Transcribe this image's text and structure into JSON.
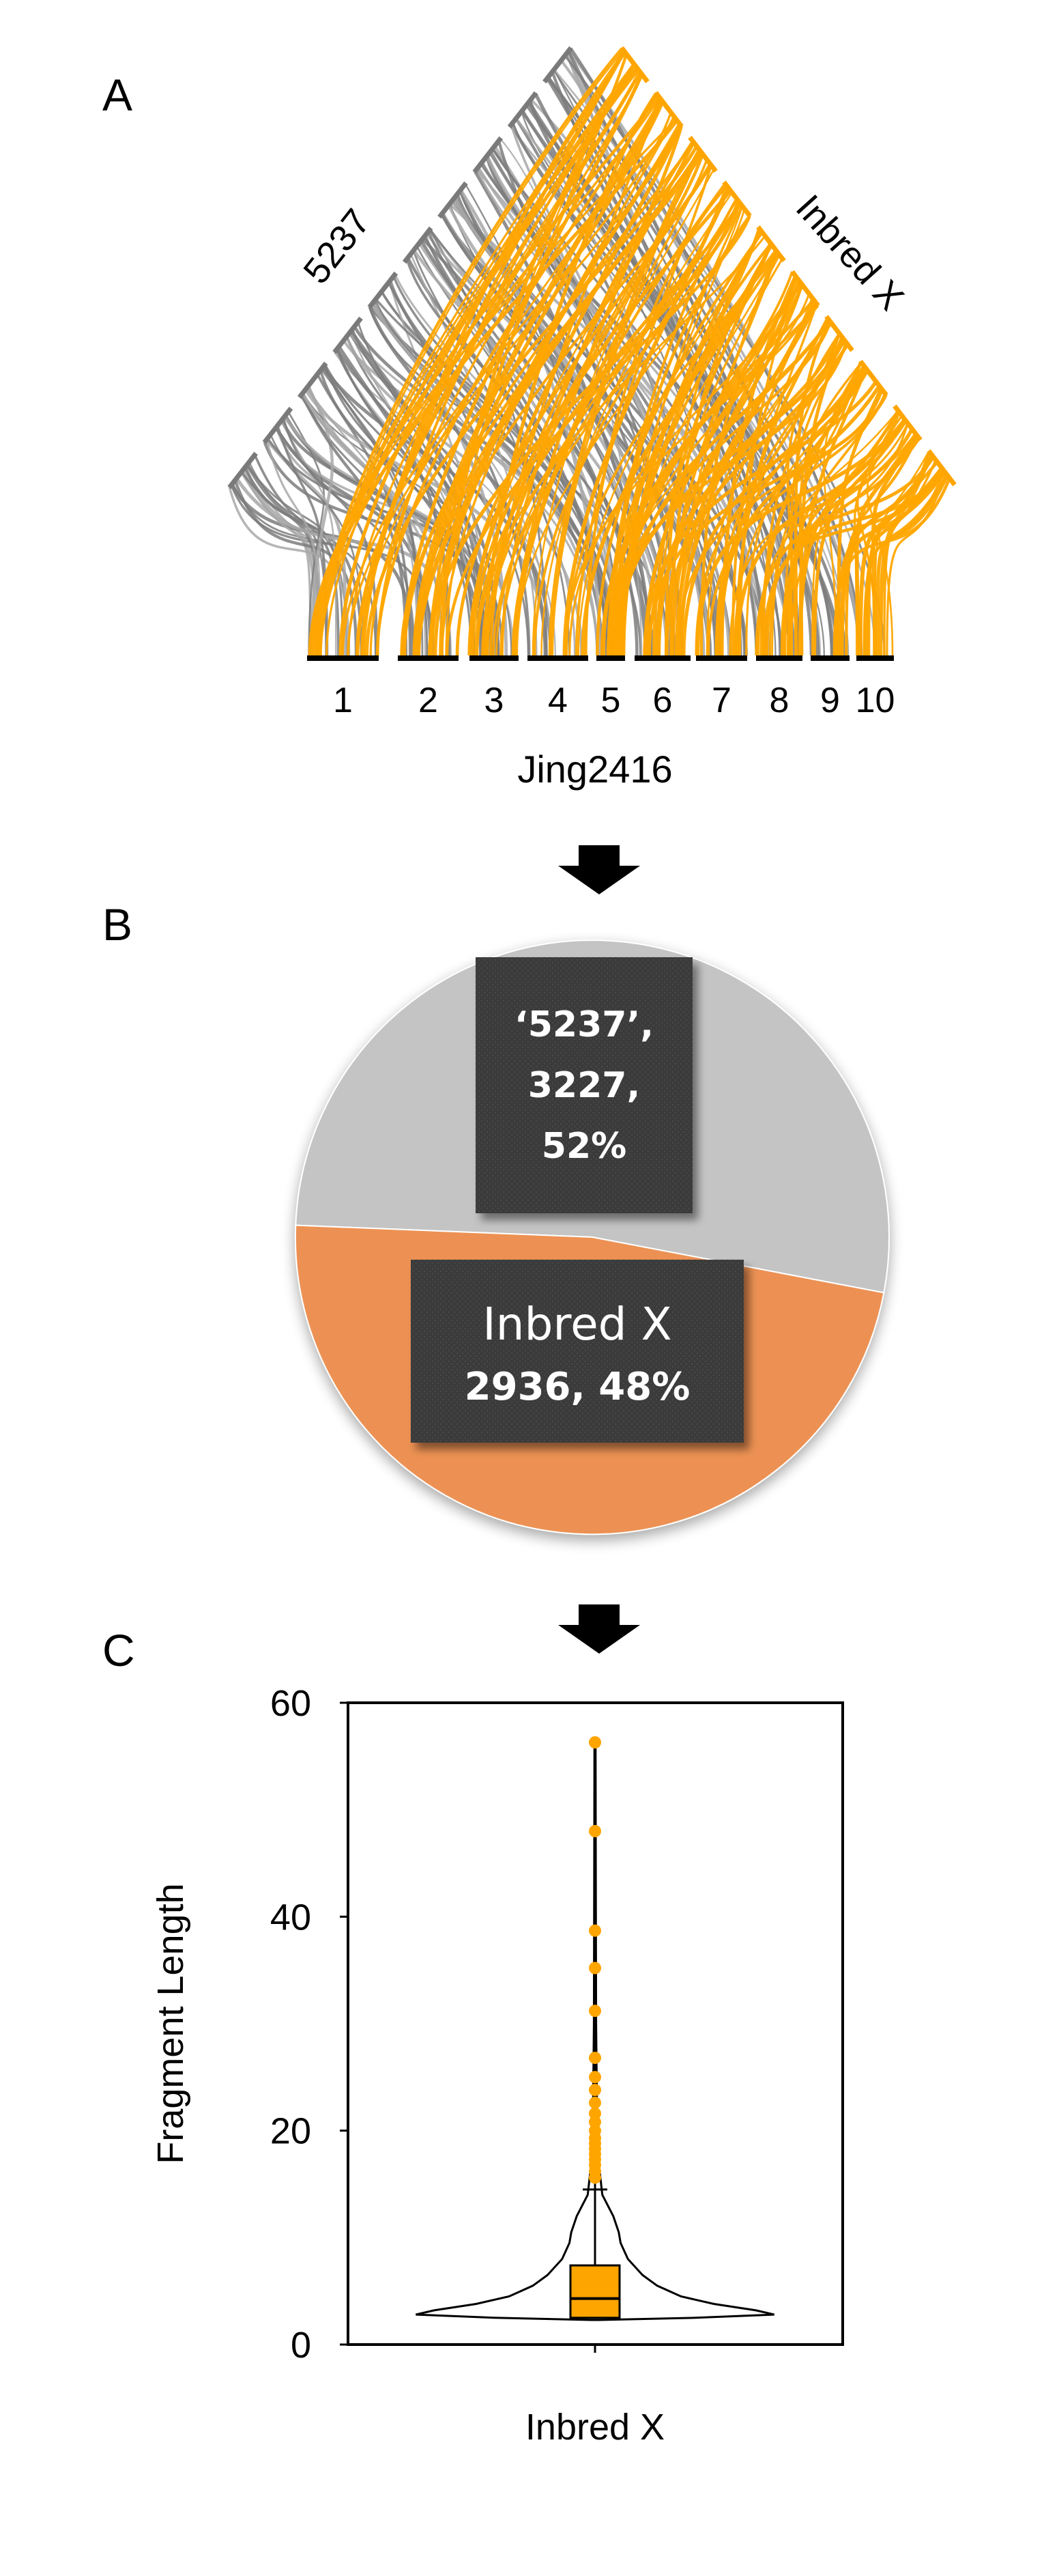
{
  "panels": {
    "a": "A",
    "b": "B",
    "c": "C"
  },
  "colors": {
    "inbred": "#ffa500",
    "ref": "#8a8a8a",
    "pie_ref": "#c4c4c4",
    "pie_inbred": "#ec9152",
    "label_box": "#3a3a3a",
    "arrow": "#000000"
  },
  "chart_data": [
    {
      "type": "synteny",
      "left_genome": "5237",
      "right_genome": "Inbred X",
      "bottom_genome": "Jing2416",
      "chromosomes": [
        "1",
        "2",
        "3",
        "4",
        "5",
        "6",
        "7",
        "8",
        "9",
        "10"
      ]
    },
    {
      "type": "pie",
      "slices": [
        {
          "label": "‘5237’,",
          "count_text": "3227,",
          "percent_text": "52%",
          "value": 3227,
          "percent": 52
        },
        {
          "label": "Inbred X",
          "count_text": "2936, 48%",
          "value": 2936,
          "percent": 48
        }
      ]
    },
    {
      "type": "violin",
      "xlabel": "Inbred X",
      "ylabel": "Fragment Length",
      "ylim": [
        0,
        60
      ],
      "yticks": [
        "0",
        "20",
        "40",
        "60"
      ],
      "box": {
        "q1": 2.5,
        "median": 4.3,
        "q3": 7.4,
        "whisker_low": 2.5,
        "whisker_high": 14.5
      },
      "outliers": [
        15.6,
        16.2,
        16.8,
        17.3,
        17.8,
        18.3,
        18.8,
        19.3,
        20.0,
        20.8,
        21.6,
        22.6,
        23.8,
        25.0,
        26.8,
        31.2,
        35.2,
        38.7,
        48.0,
        56.3
      ],
      "density": [
        [
          2.3,
          0.02
        ],
        [
          2.5,
          0.55
        ],
        [
          2.8,
          0.98
        ],
        [
          3.2,
          0.88
        ],
        [
          3.8,
          0.65
        ],
        [
          4.5,
          0.47
        ],
        [
          5.5,
          0.34
        ],
        [
          6.5,
          0.26
        ],
        [
          8,
          0.18
        ],
        [
          9.5,
          0.14
        ],
        [
          10.5,
          0.13
        ],
        [
          12,
          0.1
        ],
        [
          14,
          0.04
        ],
        [
          17,
          0.02
        ],
        [
          20,
          0.012
        ],
        [
          30,
          0.006
        ],
        [
          45,
          0.004
        ],
        [
          56.5,
          0.003
        ]
      ]
    }
  ]
}
